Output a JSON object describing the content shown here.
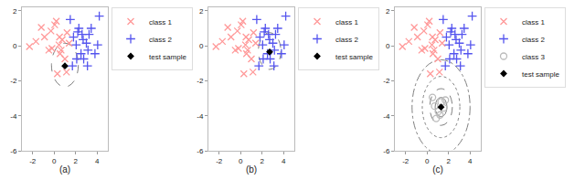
{
  "chart_data": [
    {
      "type": "scatter",
      "xlabel": "(a)",
      "series": [
        {
          "name": "class 1",
          "color": "#FF9999",
          "marker": "x",
          "x": [
            -2.3,
            -1.7,
            -1.2,
            -0.9,
            -0.5,
            -0.3,
            0.05,
            0.2,
            0.45,
            0.55,
            0.75,
            1.0,
            1.15,
            0.5,
            0.65,
            -0.2,
            0.3,
            1.4,
            1.2
          ],
          "y": [
            -0.05,
            0.25,
            1.05,
            0.5,
            -0.25,
            0.85,
            1.2,
            1.4,
            0.05,
            -0.45,
            0.35,
            -0.75,
            -1.5,
            0.5,
            -0.25,
            -0.15,
            -1.6,
            0.15,
            0.75
          ]
        },
        {
          "name": "class 2",
          "color": "#5555EE",
          "marker": "plus",
          "x": [
            1.5,
            1.8,
            2.05,
            2.2,
            2.5,
            2.7,
            3.0,
            3.15,
            3.45,
            4.05,
            2.3,
            2.75,
            3.25,
            3.8,
            2.1,
            2.6,
            3.1,
            1.7,
            4.2
          ],
          "y": [
            1.5,
            0.5,
            0.05,
            0.8,
            -0.45,
            0.35,
            0.15,
            -0.25,
            1.0,
            0.05,
            1.0,
            -0.75,
            0.65,
            -0.45,
            -0.75,
            0.65,
            -1.15,
            -1.15,
            1.7
          ]
        },
        {
          "name": "test sample",
          "color": "black",
          "marker": "diamond",
          "x": [
            1.0
          ],
          "y": [
            -1.15
          ]
        }
      ],
      "circles": [
        {
          "cx": 1.0,
          "cy": -1.1,
          "r": 1.25,
          "line_style": "dashed",
          "color": "gray"
        }
      ],
      "xlim": [
        -3,
        5
      ],
      "ylim": [
        -6,
        2.2
      ],
      "xticks": [
        -2,
        0,
        2,
        4
      ],
      "yticks": [
        -6,
        -4,
        -2,
        0,
        2
      ],
      "grid": false,
      "legend": "right"
    },
    {
      "type": "scatter",
      "xlabel": "(b)",
      "series": [
        {
          "name": "class 1",
          "color": "#FF9999",
          "marker": "x",
          "x": [
            -2.3,
            -1.7,
            -1.2,
            -0.9,
            -0.5,
            -0.3,
            0.05,
            0.2,
            0.45,
            0.55,
            0.75,
            1.0,
            1.15,
            0.5,
            0.65,
            -0.2,
            0.3,
            1.4,
            1.2
          ],
          "y": [
            -0.05,
            0.25,
            1.05,
            0.5,
            -0.25,
            0.85,
            1.2,
            1.4,
            0.05,
            -0.45,
            0.35,
            -0.75,
            -1.5,
            0.5,
            -0.25,
            -0.15,
            -1.6,
            0.15,
            0.75
          ]
        },
        {
          "name": "class 2",
          "color": "#5555EE",
          "marker": "plus",
          "x": [
            1.5,
            1.8,
            2.05,
            2.2,
            2.5,
            2.7,
            3.0,
            3.15,
            3.45,
            4.05,
            2.3,
            2.75,
            3.25,
            3.8,
            2.1,
            2.6,
            3.1,
            1.7,
            4.2
          ],
          "y": [
            1.5,
            0.5,
            0.05,
            0.8,
            -0.45,
            0.35,
            0.15,
            -0.25,
            1.0,
            0.05,
            1.0,
            -0.75,
            0.65,
            -0.45,
            -0.75,
            0.65,
            -1.15,
            -1.15,
            1.7
          ]
        },
        {
          "name": "test sample",
          "color": "black",
          "marker": "diamond",
          "x": [
            2.7
          ],
          "y": [
            -0.35
          ]
        }
      ],
      "circles": [
        {
          "cx": 2.7,
          "cy": -0.3,
          "r": 1.05,
          "line_style": "dashed",
          "color": "gray"
        }
      ],
      "xlim": [
        -3,
        5
      ],
      "ylim": [
        -6,
        2.2
      ],
      "xticks": [
        -2,
        0,
        2,
        4
      ],
      "yticks": [
        -6,
        -4,
        -2,
        0,
        2
      ],
      "grid": false,
      "legend": "right"
    },
    {
      "type": "scatter",
      "xlabel": "(c)",
      "series": [
        {
          "name": "class 1",
          "color": "#FF9999",
          "marker": "x",
          "x": [
            -2.3,
            -1.7,
            -1.2,
            -0.9,
            -0.5,
            -0.3,
            0.05,
            0.2,
            0.45,
            0.55,
            0.75,
            1.0,
            1.15,
            0.5,
            0.65,
            -0.2,
            0.3,
            1.4,
            1.2
          ],
          "y": [
            -0.05,
            0.25,
            1.05,
            0.5,
            -0.25,
            0.85,
            1.2,
            1.4,
            0.05,
            -0.45,
            0.35,
            -0.75,
            -1.5,
            0.5,
            -0.25,
            -0.15,
            -1.6,
            0.15,
            0.75
          ]
        },
        {
          "name": "class 2",
          "color": "#5555EE",
          "marker": "plus",
          "x": [
            1.5,
            1.8,
            2.05,
            2.2,
            2.5,
            2.7,
            3.0,
            3.15,
            3.45,
            4.05,
            2.3,
            2.75,
            3.25,
            3.8,
            2.1,
            2.6,
            3.1,
            1.7,
            4.2
          ],
          "y": [
            1.5,
            0.5,
            0.05,
            0.8,
            -0.45,
            0.35,
            0.15,
            -0.25,
            1.0,
            0.05,
            1.0,
            -0.75,
            0.65,
            -0.45,
            -0.75,
            0.65,
            -1.15,
            -1.15,
            1.7
          ]
        },
        {
          "name": "class 3",
          "color": "#BBBBBB",
          "marker": "circle-open",
          "x": [
            0.5,
            0.7,
            1.05,
            1.3,
            1.55,
            0.85,
            1.2,
            1.7
          ],
          "y": [
            -2.95,
            -3.45,
            -3.75,
            -3.2,
            -3.55,
            -4.15,
            -3.95,
            -3.1
          ]
        },
        {
          "name": "test sample",
          "color": "black",
          "marker": "diamond",
          "x": [
            1.3
          ],
          "y": [
            -3.5
          ]
        }
      ],
      "circles": [
        {
          "cx": 1.3,
          "cy": -3.5,
          "r": 0.55,
          "line_style": "solid",
          "color": "gray"
        },
        {
          "cx": 1.3,
          "cy": -3.5,
          "r": 1.05,
          "line_style": "dashed",
          "color": "gray"
        },
        {
          "cx": 1.3,
          "cy": -3.5,
          "r": 1.75,
          "line_style": "dotted",
          "color": "gray"
        },
        {
          "cx": 1.3,
          "cy": -3.5,
          "r": 2.7,
          "line_style": "dashdot",
          "color": "gray"
        }
      ],
      "xlim": [
        -3,
        5
      ],
      "ylim": [
        -6,
        2.2
      ],
      "xticks": [
        -2,
        0,
        2,
        4
      ],
      "yticks": [
        -6,
        -4,
        -2,
        0,
        2
      ],
      "grid": false,
      "legend": "right"
    }
  ]
}
